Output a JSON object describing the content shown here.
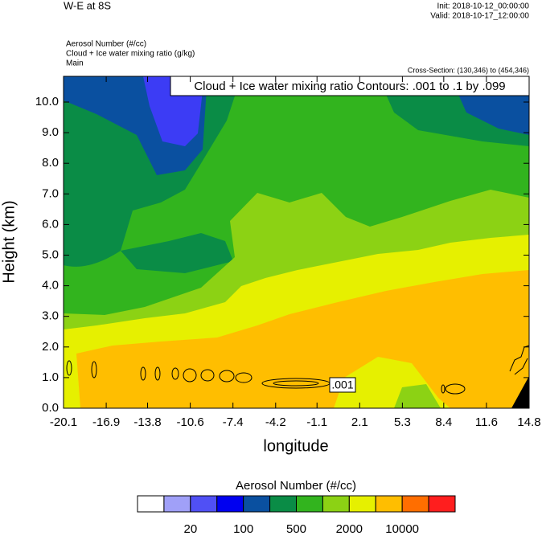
{
  "chart_data": {
    "type": "contour",
    "title": "W-E at 8S",
    "init": "Init: 2018-10-12_00:00:00",
    "valid": "Valid: 2018-10-17_12:00:00",
    "field_label": "Aerosol Number   (#/cc)",
    "contour_field_label": "Cloud + Ice water mixing ratio   (g/kg)",
    "group": "Main",
    "cross_section": "Cross-Section: (130,346) to (454,346)",
    "contour_info": "Cloud + Ice water mixing ratio Contours: .001 to .1 by .099",
    "contour_label": ".001",
    "xlabel": "longitude",
    "ylabel": "Height (km)",
    "xlim": [
      -20.1,
      14.8
    ],
    "xticks": [
      -20.1,
      -16.9,
      -13.8,
      -10.6,
      -7.4,
      -4.2,
      -1.1,
      2.1,
      5.3,
      8.4,
      11.6,
      14.8
    ],
    "ylim": [
      0,
      10.84
    ],
    "yticks": [
      {
        "value": 0,
        "label": "0.0"
      },
      {
        "value": 1,
        "label": "1.0"
      },
      {
        "value": 2,
        "label": "2.0"
      },
      {
        "value": 3,
        "label": "3.0"
      },
      {
        "value": 4,
        "label": "4.0"
      },
      {
        "value": 5,
        "label": "5.0"
      },
      {
        "value": 6,
        "label": "6.0"
      },
      {
        "value": 7,
        "label": "7.0"
      },
      {
        "value": 8,
        "label": "8.0"
      },
      {
        "value": 9,
        "label": "9.0"
      },
      {
        "value": 10,
        "label": "10.0"
      }
    ],
    "colorbar": {
      "title": "Aerosol Number  (#/cc)",
      "colors": [
        "#ffffff",
        "#a0a0f8",
        "#5050f5",
        "#0000f0",
        "#0a50a0",
        "#0a8c46",
        "#32b41e",
        "#8cd214",
        "#e6f000",
        "#ffbe00",
        "#ff6e00",
        "#ff1e1e"
      ],
      "labels": [
        20,
        100,
        500,
        2000,
        10000
      ]
    }
  }
}
